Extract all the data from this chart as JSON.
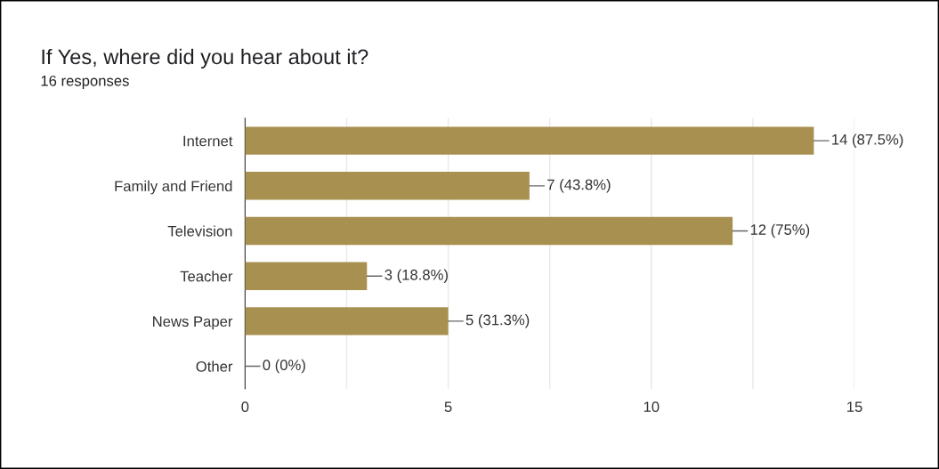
{
  "chart_data": {
    "type": "bar",
    "orientation": "horizontal",
    "title": "If Yes, where did you hear about it?",
    "subtitle": "16 responses",
    "categories": [
      "Internet",
      "Family and Friend",
      "Television",
      "Teacher",
      "News Paper",
      "Other"
    ],
    "values": [
      14,
      7,
      12,
      3,
      5,
      0
    ],
    "value_labels": [
      "14 (87.5%)",
      "7 (43.8%)",
      "12 (75%)",
      "3 (18.8%)",
      "5 (31.3%)",
      "0 (0%)"
    ],
    "color": "#a89050",
    "xlim": [
      0,
      15
    ],
    "xticks": [
      0,
      {
        "value": 2.5,
        "label": null
      },
      5,
      {
        "value": 7.5,
        "label": null
      },
      10,
      {
        "value": 12.5,
        "label": null
      },
      15
    ],
    "grid": "x"
  }
}
